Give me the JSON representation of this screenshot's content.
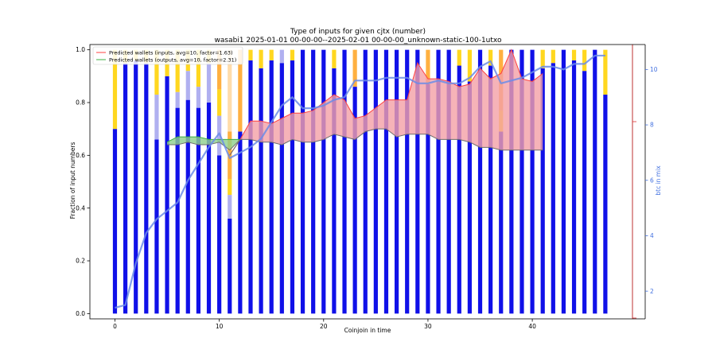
{
  "chart_data": {
    "type": "bar",
    "title": "Type of inputs for given cjtx (number)",
    "subtitle": "wasabi1 2025-01-01 00-00-00--2025-02-01 00-00-00_unknown-static-100-1utxo",
    "xlabel": "Coinjoin in time",
    "ylabel": "Fraction of input numbers",
    "y2label": "btc in mix",
    "xlim": [
      -2.4,
      49.6
    ],
    "ylim": [
      -0.02,
      1.02
    ],
    "y2lim": [
      1.0,
      10.9
    ],
    "xticks": [
      0,
      10,
      20,
      30,
      40
    ],
    "yticks": [
      0.0,
      0.2,
      0.4,
      0.6,
      0.8,
      1.0
    ],
    "yticks_labels": [
      "0.0",
      "0.2",
      "0.4",
      "0.6",
      "0.8",
      "1.0"
    ],
    "y2ticks": [
      2,
      4,
      6,
      8,
      10
    ],
    "grid": false,
    "legend_position": "top-left",
    "legend": [
      "Predicted wallets (inputs, avg=10, factor=1.63)",
      "Predicted wallets (outputs, avg=10, factor=2.31)"
    ],
    "colors": {
      "fresh": "#1010e8",
      "remix": "#b0b0f0",
      "friends": "#ffd71f",
      "other": "#ffb040",
      "other_light": "#ffdcaa",
      "btc_line": "#6b8ce8",
      "inputs_line": "#ff4040",
      "inputs_fill": "#f4a0a6",
      "outputs_line": "#3cb043",
      "outputs_fill": "#8fd08c",
      "boundary_line": "#6d6d6d",
      "right_axis": "#4472e0",
      "spine_red": "#e03030"
    },
    "x": [
      0,
      1,
      2,
      3,
      4,
      5,
      6,
      7,
      8,
      9,
      10,
      11,
      12,
      13,
      14,
      15,
      16,
      17,
      18,
      19,
      20,
      21,
      22,
      23,
      24,
      25,
      26,
      27,
      28,
      29,
      30,
      31,
      32,
      33,
      34,
      35,
      36,
      37,
      38,
      39,
      40,
      41,
      42,
      43,
      44,
      45,
      46,
      47
    ],
    "series": [
      {
        "key": "fresh",
        "values": [
          0.7,
          0.95,
          0.96,
          0.95,
          0.66,
          0.9,
          0.78,
          0.81,
          0.78,
          0.8,
          0.6,
          0.36,
          0.69,
          0.96,
          0.93,
          0.96,
          0.95,
          0.96,
          1.0,
          1.0,
          1.0,
          0.93,
          1.0,
          0.86,
          1.0,
          1.0,
          1.0,
          1.0,
          1.0,
          1.0,
          0.87,
          1.0,
          1.0,
          0.94,
          0.88,
          1.0,
          0.94,
          0.69,
          1.0,
          1.0,
          1.0,
          0.93,
          0.95,
          1.0,
          0.96,
          0.92,
          1.0,
          0.83
        ]
      },
      {
        "key": "remix",
        "values": [
          0.0,
          0.0,
          0.0,
          0.0,
          0.17,
          0.0,
          0.06,
          0.11,
          0.08,
          0.15,
          0.15,
          0.09,
          0.0,
          0.0,
          0.0,
          0.0,
          0.05,
          0.0,
          0.0,
          0.0,
          0.0,
          0.0,
          0.0,
          0.0,
          0.0,
          0.0,
          0.0,
          0.0,
          0.0,
          0.0,
          0.0,
          0.0,
          0.0,
          0.0,
          0.0,
          0.0,
          0.0,
          0.0,
          0.0,
          0.0,
          0.0,
          0.0,
          0.0,
          0.0,
          0.0,
          0.0,
          0.0,
          0.0
        ]
      },
      {
        "key": "friends",
        "values": [
          0.3,
          0.05,
          0.04,
          0.05,
          0.17,
          0.1,
          0.16,
          0.08,
          0.14,
          0.05,
          0.1,
          0.06,
          0.0,
          0.04,
          0.07,
          0.04,
          0.0,
          0.04,
          0.0,
          0.0,
          0.0,
          0.07,
          0.0,
          0.0,
          0.0,
          0.0,
          0.0,
          0.0,
          0.0,
          0.0,
          0.0,
          0.0,
          0.0,
          0.06,
          0.12,
          0.0,
          0.06,
          0.08,
          0.0,
          0.0,
          0.0,
          0.07,
          0.05,
          0.0,
          0.04,
          0.08,
          0.0,
          0.17
        ]
      },
      {
        "key": "other",
        "values": [
          0.0,
          0.0,
          0.0,
          0.0,
          0.0,
          0.0,
          0.0,
          0.0,
          0.0,
          0.0,
          0.15,
          0.18,
          0.31,
          0.0,
          0.0,
          0.0,
          0.0,
          0.0,
          0.0,
          0.0,
          0.0,
          0.0,
          0.0,
          0.14,
          0.0,
          0.0,
          0.0,
          0.0,
          0.0,
          0.0,
          0.13,
          0.0,
          0.0,
          0.0,
          0.0,
          0.0,
          0.0,
          0.23,
          0.0,
          0.0,
          0.0,
          0.0,
          0.0,
          0.0,
          0.0,
          0.0,
          0.0,
          0.0
        ]
      },
      {
        "key": "other_light",
        "values": [
          0.0,
          0.0,
          0.0,
          0.0,
          0.0,
          0.0,
          0.0,
          0.0,
          0.0,
          0.0,
          0.0,
          0.31,
          0.0,
          0.0,
          0.0,
          0.0,
          0.0,
          0.0,
          0.0,
          0.0,
          0.0,
          0.0,
          0.0,
          0.0,
          0.0,
          0.0,
          0.0,
          0.0,
          0.0,
          0.0,
          0.0,
          0.0,
          0.0,
          0.0,
          0.0,
          0.0,
          0.0,
          0.0,
          0.0,
          0.0,
          0.0,
          0.0,
          0.0,
          0.0,
          0.0,
          0.0,
          0.0,
          0.0
        ]
      }
    ],
    "btc_in_mix": [
      1.4,
      1.5,
      3.0,
      4.1,
      4.6,
      4.9,
      5.2,
      6.0,
      6.6,
      7.2,
      7.7,
      6.8,
      7.0,
      7.2,
      7.5,
      8.1,
      8.7,
      9.0,
      8.6,
      8.6,
      8.7,
      8.9,
      9.0,
      9.6,
      9.6,
      9.6,
      9.7,
      9.7,
      9.7,
      9.5,
      9.5,
      9.6,
      9.5,
      9.5,
      9.7,
      10.1,
      10.3,
      9.5,
      9.6,
      9.7,
      9.9,
      10.1,
      10.1,
      10.0,
      10.2,
      10.2,
      10.5,
      10.5
    ],
    "predicted_inputs": {
      "x": [
        11,
        12,
        13,
        14,
        15,
        16,
        17,
        18,
        19,
        20,
        21,
        22,
        23,
        24,
        25,
        26,
        27,
        28,
        29,
        30,
        31,
        32,
        33,
        34,
        35,
        36,
        37,
        38,
        39,
        40,
        41
      ],
      "upper": [
        0.6,
        0.66,
        0.73,
        0.73,
        0.72,
        0.74,
        0.76,
        0.76,
        0.77,
        0.8,
        0.83,
        0.81,
        0.74,
        0.75,
        0.78,
        0.81,
        0.81,
        0.81,
        0.95,
        0.89,
        0.89,
        0.88,
        0.86,
        0.87,
        0.93,
        0.89,
        0.91,
        1.0,
        0.89,
        0.88,
        0.91
      ],
      "lower": [
        0.6,
        0.66,
        0.66,
        0.65,
        0.65,
        0.64,
        0.66,
        0.65,
        0.65,
        0.66,
        0.68,
        0.67,
        0.66,
        0.69,
        0.7,
        0.7,
        0.67,
        0.68,
        0.68,
        0.68,
        0.66,
        0.66,
        0.66,
        0.65,
        0.63,
        0.63,
        0.62,
        0.62,
        0.62,
        0.62,
        0.62
      ]
    },
    "predicted_outputs": {
      "x": [
        5,
        6,
        7,
        8,
        9,
        10,
        11,
        12
      ],
      "upper": [
        0.65,
        0.67,
        0.67,
        0.67,
        0.66,
        0.66,
        0.66,
        0.66
      ],
      "lower": [
        0.64,
        0.64,
        0.65,
        0.64,
        0.64,
        0.65,
        0.62,
        0.66
      ]
    }
  }
}
